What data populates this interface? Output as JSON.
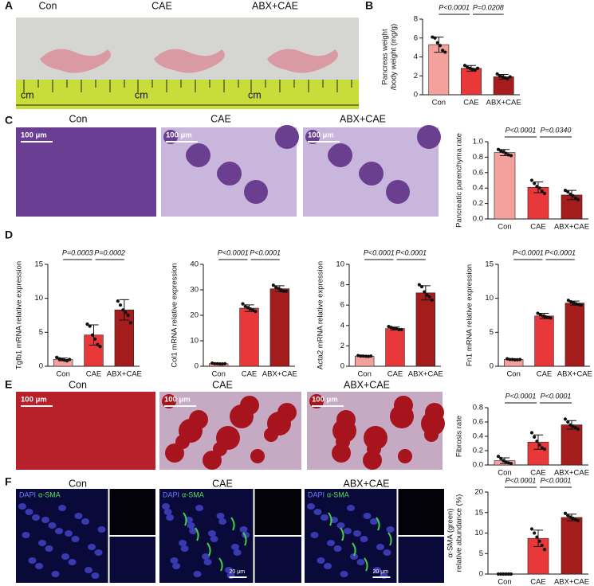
{
  "panels": {
    "A": {
      "letter": "A",
      "captions": [
        "Con",
        "CAE",
        "ABX+CAE"
      ],
      "scale": "cm"
    },
    "B": {
      "letter": "B"
    },
    "C": {
      "letter": "C",
      "captions": [
        "Con",
        "CAE",
        "ABX+CAE"
      ],
      "scale": "100 μm"
    },
    "D": {
      "letter": "D"
    },
    "E": {
      "letter": "E",
      "captions": [
        "Con",
        "CAE",
        "ABX+CAE"
      ],
      "scale": "100 μm"
    },
    "F": {
      "letter": "F",
      "captions": [
        "Con",
        "CAE",
        "ABX+CAE"
      ],
      "stains": [
        "DAPI",
        "α-SMA"
      ],
      "scale": "20 μm"
    }
  },
  "chart_data": [
    {
      "type": "bar",
      "ylabel": [
        "Pancreas weight",
        "/body weight (mg/g)"
      ],
      "categories": [
        "Con",
        "CAE",
        "ABX+CAE"
      ],
      "colors": [
        "#f4a09c",
        "#e8383a",
        "#a51c1c"
      ],
      "values": [
        5.3,
        2.8,
        1.9
      ],
      "errors": [
        0.8,
        0.3,
        0.25
      ],
      "points": [
        [
          6.1,
          6.0,
          5.5,
          5.2,
          4.7,
          4.5
        ],
        [
          3.1,
          2.9,
          2.8,
          2.7,
          2.6,
          2.8
        ],
        [
          2.2,
          2.0,
          1.9,
          1.8,
          1.7,
          1.9
        ]
      ],
      "ylim": [
        0,
        8
      ],
      "yticks": [
        0,
        2,
        4,
        6,
        8
      ],
      "annotations": [
        {
          "text": "P<0.0001",
          "pair": [
            "Con",
            "CAE"
          ]
        },
        {
          "text": "P=0.0208",
          "pair": [
            "CAE",
            "ABX+CAE"
          ]
        }
      ]
    },
    {
      "type": "bar",
      "ylabel": "Pancreatic parenchyma rate",
      "categories": [
        "Con",
        "CAE",
        "ABX+CAE"
      ],
      "colors": [
        "#f4a09c",
        "#e8383a",
        "#a51c1c"
      ],
      "values": [
        0.86,
        0.41,
        0.31
      ],
      "errors": [
        0.04,
        0.07,
        0.06
      ],
      "points": [
        [
          0.9,
          0.88,
          0.87,
          0.85,
          0.83,
          0.82
        ],
        [
          0.5,
          0.46,
          0.42,
          0.4,
          0.36,
          0.33
        ],
        [
          0.37,
          0.35,
          0.32,
          0.3,
          0.27,
          0.25
        ]
      ],
      "ylim": [
        0,
        1
      ],
      "yticks": [
        {
          "value": 0,
          "label": "0.0"
        },
        0.2,
        0.4,
        0.6,
        0.8,
        {
          "value": 1,
          "label": "1.0"
        }
      ],
      "annotations": [
        {
          "text": "P<0.0001",
          "pair": [
            "Con",
            "CAE"
          ]
        },
        {
          "text": "P=0.0340",
          "pair": [
            "CAE",
            "ABX+CAE"
          ]
        }
      ]
    },
    {
      "type": "bar",
      "ylabel": "Tgfb1 mRNA relative expression",
      "categories": [
        "Con",
        "CAE",
        "ABX+CAE"
      ],
      "colors": [
        "#f4a09c",
        "#e8383a",
        "#a51c1c"
      ],
      "values": [
        1.0,
        4.6,
        8.3
      ],
      "errors": [
        0.2,
        1.5,
        1.5
      ],
      "points": [
        [
          1.3,
          1.1,
          1.0,
          0.9,
          0.8,
          1.0
        ],
        [
          6.2,
          5.9,
          4.6,
          4.0,
          3.2,
          2.9
        ],
        [
          9.6,
          9.0,
          8.3,
          7.9,
          7.5,
          6.4
        ]
      ],
      "ylim": [
        0,
        15
      ],
      "yticks": [
        0,
        5,
        10,
        15
      ],
      "annotations": [
        {
          "text": "P=0.0003",
          "pair": [
            "Con",
            "CAE"
          ]
        },
        {
          "text": "P=0.0002",
          "pair": [
            "CAE",
            "ABX+CAE"
          ]
        }
      ]
    },
    {
      "type": "bar",
      "ylabel": "Col1 mRNA relative expression",
      "categories": [
        "Con",
        "CAE",
        "ABX+CAE"
      ],
      "colors": [
        "#f4a09c",
        "#e8383a",
        "#a51c1c"
      ],
      "values": [
        1.0,
        22.8,
        30.4
      ],
      "errors": [
        0.2,
        1.3,
        1.2
      ],
      "points": [
        [
          1.2,
          1.0,
          1.0,
          0.9,
          0.9,
          1.0
        ],
        [
          24.5,
          23.5,
          23,
          22.5,
          22,
          21.5
        ],
        [
          31.8,
          31,
          30.5,
          30,
          29.5,
          29.5
        ]
      ],
      "ylim": [
        0,
        40
      ],
      "yticks": [
        0,
        10,
        20,
        30,
        40
      ],
      "annotations": [
        {
          "text": "P<0.0001",
          "pair": [
            "Con",
            "CAE"
          ]
        },
        {
          "text": "P<0.0001",
          "pair": [
            "CAE",
            "ABX+CAE"
          ]
        }
      ]
    },
    {
      "type": "bar",
      "ylabel": "Acta2 mRNA relative expression",
      "categories": [
        "Con",
        "CAE",
        "ABX+CAE"
      ],
      "colors": [
        "#f4a09c",
        "#e8383a",
        "#a51c1c"
      ],
      "values": [
        1.0,
        3.7,
        7.2
      ],
      "errors": [
        0.05,
        0.15,
        0.7
      ],
      "points": [
        [
          1.05,
          1.0,
          1.0,
          0.98,
          0.97,
          1.0
        ],
        [
          3.9,
          3.8,
          3.7,
          3.7,
          3.6,
          3.6
        ],
        [
          8.0,
          7.8,
          7.3,
          7.0,
          6.8,
          6.5
        ]
      ],
      "ylim": [
        0,
        10
      ],
      "yticks": [
        0,
        2,
        4,
        6,
        8,
        10
      ],
      "annotations": [
        {
          "text": "P<0.0001",
          "pair": [
            "Con",
            "CAE"
          ]
        },
        {
          "text": "P<0.0001",
          "pair": [
            "CAE",
            "ABX+CAE"
          ]
        }
      ]
    },
    {
      "type": "bar",
      "ylabel": "Fn1 mRNA relative expression",
      "categories": [
        "Con",
        "CAE",
        "ABX+CAE"
      ],
      "colors": [
        "#f4a09c",
        "#e8383a",
        "#a51c1c"
      ],
      "values": [
        1.0,
        7.4,
        9.3
      ],
      "errors": [
        0.1,
        0.4,
        0.3
      ],
      "points": [
        [
          1.1,
          1.0,
          1.0,
          0.95,
          0.95,
          1.0
        ],
        [
          7.8,
          7.6,
          7.4,
          7.3,
          7.2,
          7.1
        ],
        [
          9.7,
          9.5,
          9.3,
          9.2,
          9.1,
          9.0
        ]
      ],
      "ylim": [
        0,
        15
      ],
      "yticks": [
        0,
        5,
        10,
        15
      ],
      "annotations": [
        {
          "text": "P<0.0001",
          "pair": [
            "Con",
            "CAE"
          ]
        },
        {
          "text": "P<0.0001",
          "pair": [
            "CAE",
            "ABX+CAE"
          ]
        }
      ]
    },
    {
      "type": "bar",
      "ylabel": "Fibrosis rate",
      "categories": [
        "Con",
        "CAE",
        "ABX+CAE"
      ],
      "colors": [
        "#f4a09c",
        "#e8383a",
        "#a51c1c"
      ],
      "values": [
        0.06,
        0.32,
        0.56
      ],
      "errors": [
        0.04,
        0.1,
        0.06
      ],
      "points": [
        [
          0.12,
          0.09,
          0.06,
          0.04,
          0.03,
          0.02
        ],
        [
          0.45,
          0.39,
          0.33,
          0.28,
          0.24,
          0.22
        ],
        [
          0.64,
          0.6,
          0.56,
          0.54,
          0.52,
          0.5
        ]
      ],
      "ylim": [
        0,
        0.8
      ],
      "yticks": [
        {
          "value": 0,
          "label": "0.0"
        },
        0.2,
        0.4,
        0.6,
        0.8
      ],
      "annotations": [
        {
          "text": "P<0.0001",
          "pair": [
            "Con",
            "CAE"
          ]
        },
        {
          "text": "P<0.0001",
          "pair": [
            "CAE",
            "ABX+CAE"
          ]
        }
      ]
    },
    {
      "type": "bar",
      "ylabel": [
        "α-SMA (green)",
        "relative abundance (%)"
      ],
      "categories": [
        "Con",
        "CAE",
        "ABX+CAE"
      ],
      "colors": [
        "#f4a09c",
        "#e8383a",
        "#a51c1c"
      ],
      "values": [
        0,
        8.7,
        13.8
      ],
      "errors": [
        0,
        2.0,
        0.8
      ],
      "points": [
        [
          0,
          0,
          0,
          0,
          0,
          0
        ],
        [
          11,
          10,
          9,
          8,
          7,
          6
        ],
        [
          14.8,
          14.3,
          13.9,
          13.6,
          13.3,
          13
        ]
      ],
      "ylim": [
        0,
        20
      ],
      "yticks": [
        0,
        5,
        10,
        15,
        20
      ],
      "annotations": [
        {
          "text": "P<0.0001",
          "pair": [
            "Con",
            "CAE"
          ]
        },
        {
          "text": "P<0.0001",
          "pair": [
            "CAE",
            "ABX+CAE"
          ]
        }
      ]
    }
  ]
}
